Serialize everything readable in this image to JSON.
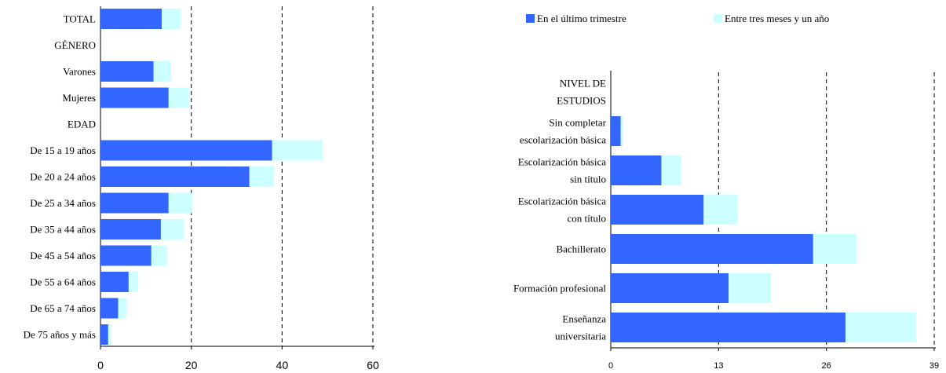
{
  "colors": {
    "last_quarter": "#3366ff",
    "three_months_to_year": "#ccffff"
  },
  "legend": {
    "series1": "En el último trimestre",
    "series2": "Entre tres meses y un año"
  },
  "chart_data": [
    {
      "type": "bar",
      "orientation": "horizontal",
      "stacked": true,
      "categories": [
        "TOTAL",
        "GÉNERO",
        "Varones",
        "Mujeres",
        "EDAD",
        "De 15 a 19 años",
        "De 20 a 24 años",
        "De 25 a 34 años",
        "De 35 a 44 años",
        "De 45 a 54 años",
        "De 55 a 64 años",
        "De 65 a 74 años",
        "De 75 años y más"
      ],
      "series": [
        {
          "values": [
            13.5,
            null,
            11.7,
            15.0,
            null,
            37.8,
            32.8,
            15.0,
            13.3,
            11.2,
            6.2,
            3.9,
            1.7
          ]
        },
        {
          "values": [
            4.2,
            null,
            3.8,
            4.5,
            null,
            11.1,
            5.4,
            5.2,
            5.1,
            3.4,
            2.1,
            1.8,
            0.7
          ]
        }
      ],
      "xlim": [
        0,
        60
      ],
      "xticks": [
        "0",
        "20",
        "40",
        "60"
      ],
      "grid": "vertical-dashed"
    },
    {
      "type": "bar",
      "orientation": "horizontal",
      "stacked": true,
      "categories": [
        [
          "NIVEL DE",
          "ESTUDIOS"
        ],
        [
          "Sin completar",
          "escolarización básica"
        ],
        [
          "Escolarización básica",
          "sin título"
        ],
        [
          "Escolarización básica",
          "con título"
        ],
        [
          "Bachillerato"
        ],
        [
          "Formación profesional"
        ],
        [
          "Enseñanza",
          "universitaria"
        ]
      ],
      "series": [
        {
          "values": [
            null,
            1.2,
            6.1,
            11.2,
            24.4,
            14.2,
            28.3
          ]
        },
        {
          "values": [
            null,
            0.3,
            2.4,
            4.1,
            5.2,
            5.1,
            8.5
          ]
        }
      ],
      "xlim": [
        0,
        39
      ],
      "xticks": [
        "0",
        "13",
        "26",
        "39"
      ],
      "grid": "vertical-dashed"
    }
  ]
}
